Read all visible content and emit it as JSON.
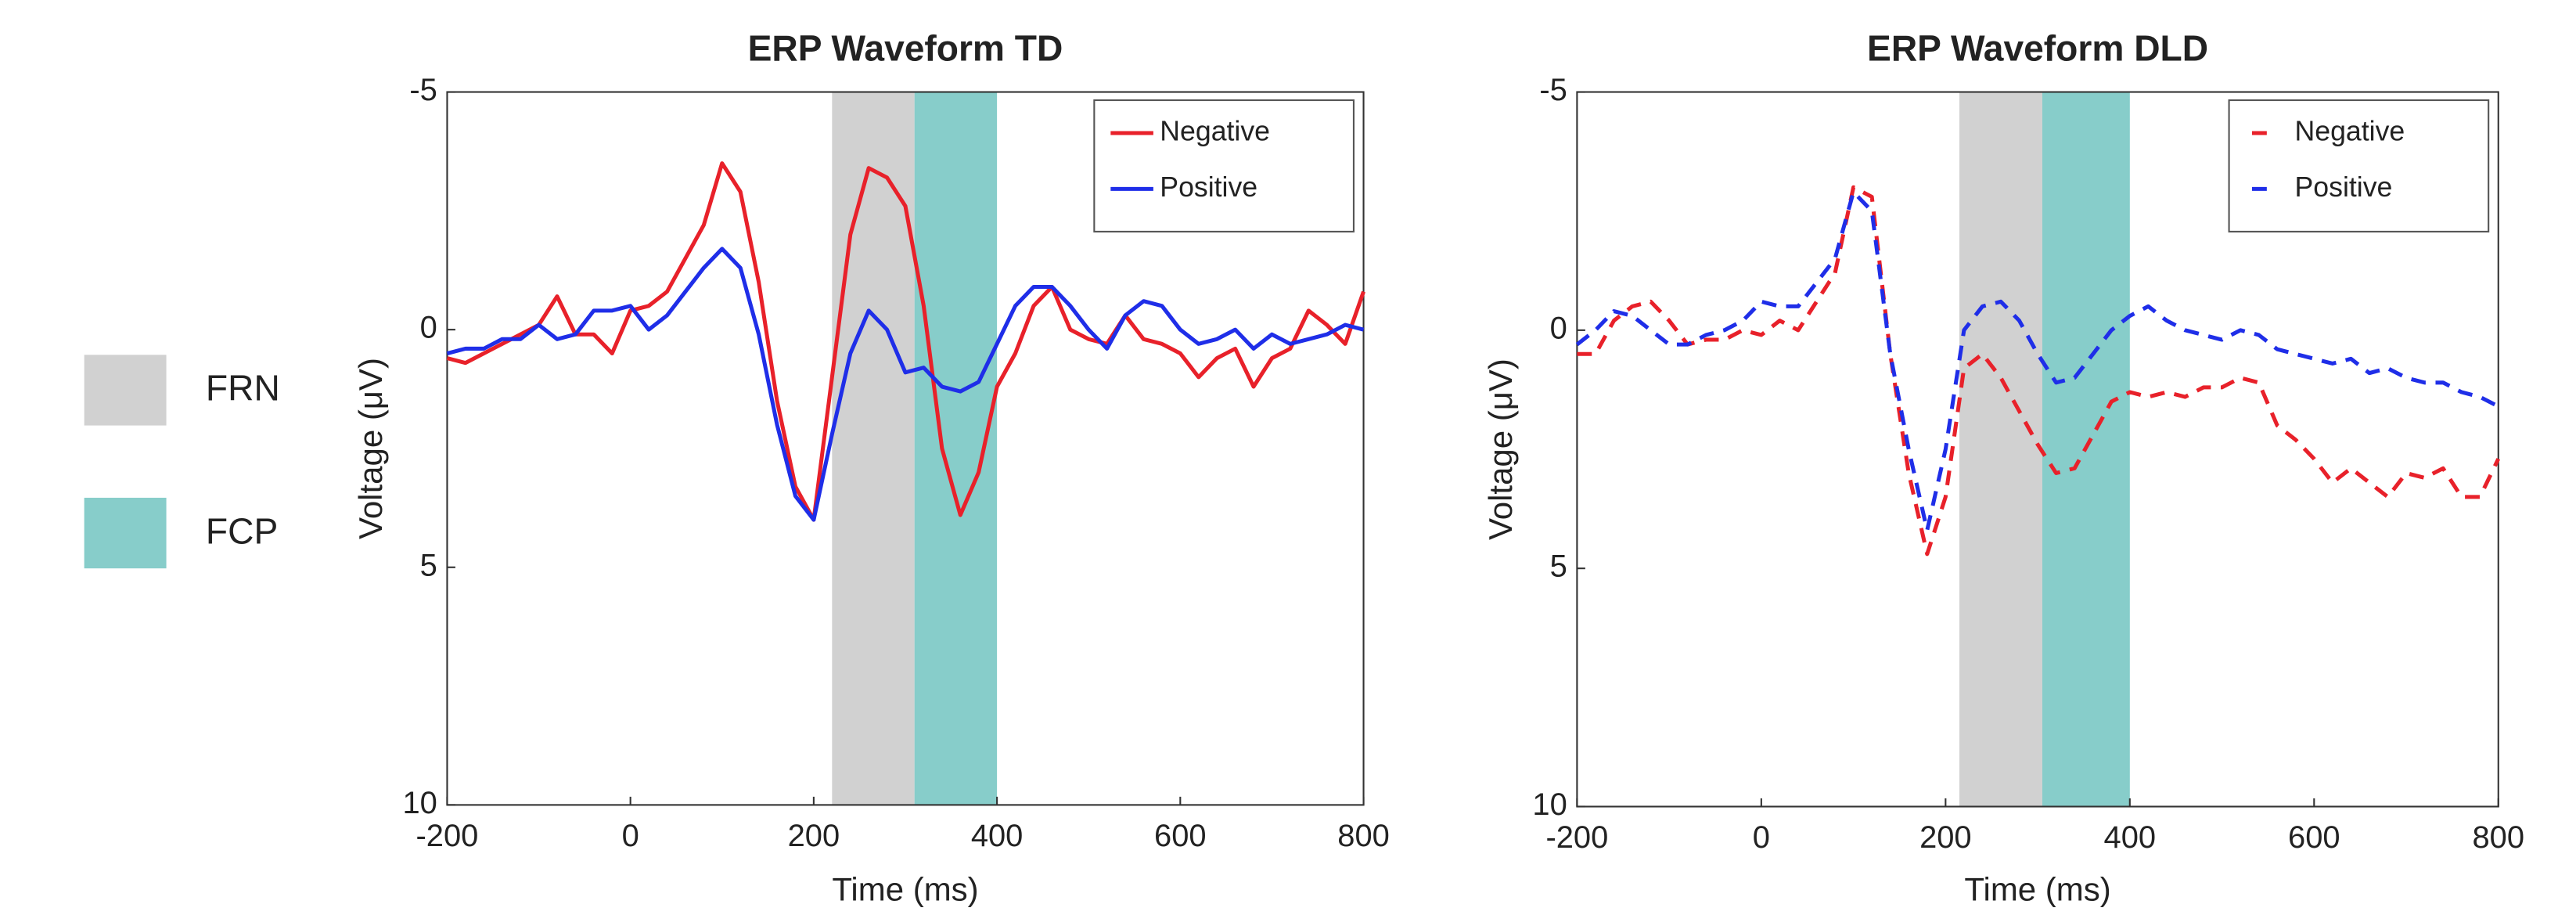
{
  "region_legend": [
    {
      "name": "FRN",
      "color": "#d1d1d1"
    },
    {
      "name": "FCP",
      "color": "#87cdca"
    }
  ],
  "chart_data": [
    {
      "type": "line",
      "title": "ERP Waveform TD",
      "x_label": "Time (ms)",
      "y_label": "Voltage (μV)",
      "xlim": [
        -200,
        800
      ],
      "ylim": [
        -5,
        10
      ],
      "reverse_y": true,
      "xticks": [
        -200,
        0,
        200,
        400,
        600,
        800
      ],
      "yticks": [
        -5,
        0,
        5,
        10
      ],
      "legend": "upper right",
      "regions": [
        {
          "x": [
            220,
            310
          ]
        },
        {
          "x": [
            310,
            400
          ]
        }
      ],
      "x": [
        -200,
        -180,
        -160,
        -140,
        -120,
        -100,
        -80,
        -60,
        -40,
        -20,
        0,
        20,
        40,
        60,
        80,
        100,
        120,
        140,
        160,
        180,
        200,
        220,
        240,
        260,
        280,
        300,
        320,
        340,
        360,
        380,
        400,
        420,
        440,
        460,
        480,
        500,
        520,
        540,
        560,
        580,
        600,
        620,
        640,
        660,
        680,
        700,
        720,
        740,
        760,
        780,
        800
      ],
      "series": [
        {
          "name": "Negative",
          "color": "#e8212a",
          "style": "solid",
          "values": [
            0.6,
            0.7,
            0.5,
            0.3,
            0.1,
            -0.1,
            -0.7,
            0.1,
            0.1,
            0.5,
            -0.4,
            -0.5,
            -0.8,
            -1.5,
            -2.2,
            -3.5,
            -2.9,
            -1.0,
            1.5,
            3.3,
            4.0,
            1.0,
            -2.0,
            -3.4,
            -3.2,
            -2.6,
            -0.5,
            2.5,
            3.9,
            3.0,
            1.2,
            0.5,
            -0.5,
            -0.9,
            0.0,
            0.2,
            0.3,
            -0.3,
            0.2,
            0.3,
            0.5,
            1.0,
            0.6,
            0.4,
            1.2,
            0.6,
            0.4,
            -0.4,
            -0.1,
            0.3,
            -0.8
          ]
        },
        {
          "name": "Positive",
          "color": "#1f2ee8",
          "style": "solid",
          "values": [
            0.5,
            0.4,
            0.4,
            0.2,
            0.2,
            -0.1,
            0.2,
            0.1,
            -0.4,
            -0.4,
            -0.5,
            0.0,
            -0.3,
            -0.8,
            -1.3,
            -1.7,
            -1.3,
            0.1,
            2.0,
            3.5,
            4.0,
            2.2,
            0.5,
            -0.4,
            0.0,
            0.9,
            0.8,
            1.2,
            1.3,
            1.1,
            0.3,
            -0.5,
            -0.9,
            -0.9,
            -0.5,
            0.0,
            0.4,
            -0.3,
            -0.6,
            -0.5,
            0.0,
            0.3,
            0.2,
            0.0,
            0.4,
            0.1,
            0.3,
            0.2,
            0.1,
            -0.1,
            0.0
          ]
        }
      ]
    },
    {
      "type": "line",
      "title": "ERP Waveform DLD",
      "x_label": "Time (ms)",
      "y_label": "Voltage (μV)",
      "xlim": [
        -200,
        800
      ],
      "ylim": [
        -5,
        10
      ],
      "reverse_y": true,
      "xticks": [
        -200,
        0,
        200,
        400,
        600,
        800
      ],
      "yticks": [
        -5,
        0,
        5,
        10
      ],
      "legend": "upper right",
      "regions": [
        {
          "x": [
            215,
            305
          ]
        },
        {
          "x": [
            305,
            400
          ]
        }
      ],
      "x": [
        -200,
        -180,
        -160,
        -140,
        -120,
        -100,
        -80,
        -60,
        -40,
        -20,
        0,
        20,
        40,
        60,
        80,
        100,
        120,
        140,
        160,
        180,
        200,
        220,
        240,
        260,
        280,
        300,
        320,
        340,
        360,
        380,
        400,
        420,
        440,
        460,
        480,
        500,
        520,
        540,
        560,
        580,
        600,
        620,
        640,
        660,
        680,
        700,
        720,
        740,
        760,
        780,
        800
      ],
      "series": [
        {
          "name": "Negative",
          "color": "#e8212a",
          "style": "dashed",
          "values": [
            0.5,
            0.5,
            -0.2,
            -0.5,
            -0.6,
            -0.2,
            0.3,
            0.2,
            0.2,
            0.0,
            0.1,
            -0.2,
            0.0,
            -0.6,
            -1.2,
            -3.0,
            -2.8,
            0.5,
            3.0,
            4.7,
            3.5,
            0.8,
            0.5,
            1.0,
            1.7,
            2.4,
            3.0,
            2.9,
            2.2,
            1.5,
            1.3,
            1.4,
            1.3,
            1.4,
            1.2,
            1.2,
            1.0,
            1.1,
            2.0,
            2.3,
            2.7,
            3.2,
            2.9,
            3.2,
            3.5,
            3.0,
            3.1,
            2.9,
            3.5,
            3.5,
            2.7
          ]
        },
        {
          "name": "Positive",
          "color": "#1f2ee8",
          "style": "dashed",
          "values": [
            0.3,
            0.0,
            -0.4,
            -0.3,
            0.0,
            0.3,
            0.3,
            0.1,
            0.0,
            -0.2,
            -0.6,
            -0.5,
            -0.5,
            -1.0,
            -1.5,
            -2.9,
            -2.5,
            0.5,
            2.5,
            4.2,
            2.5,
            0.0,
            -0.5,
            -0.6,
            -0.2,
            0.5,
            1.1,
            1.0,
            0.5,
            0.0,
            -0.3,
            -0.5,
            -0.2,
            0.0,
            0.1,
            0.2,
            0.0,
            0.1,
            0.4,
            0.5,
            0.6,
            0.7,
            0.6,
            0.9,
            0.8,
            1.0,
            1.1,
            1.1,
            1.3,
            1.4,
            1.6
          ]
        }
      ]
    }
  ]
}
